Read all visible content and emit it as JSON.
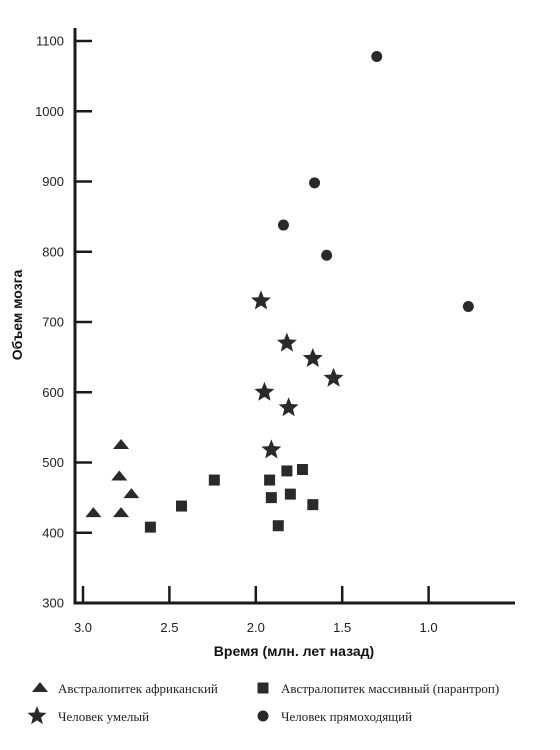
{
  "chart_data": {
    "type": "scatter",
    "xlabel": "Время (млн. лет назад)",
    "ylabel": "Объем мозга",
    "xlim": [
      3.0,
      0.5
    ],
    "ylim": [
      300,
      1100
    ],
    "x_reversed": true,
    "x_ticks": [
      3.0,
      2.5,
      2.0,
      1.5,
      1.0
    ],
    "x_tick_labels": [
      "3.0",
      "2.5",
      "2.0",
      "1.5",
      "1.0"
    ],
    "y_ticks": [
      300,
      400,
      500,
      600,
      700,
      800,
      900,
      1000,
      1100
    ],
    "y_tick_labels": [
      "300",
      "400",
      "500",
      "600",
      "700",
      "800",
      "900",
      "1000",
      "1100"
    ],
    "grid": false,
    "legend_position": "bottom",
    "series": [
      {
        "name": "Австралопитек африканский",
        "marker": "triangle",
        "points": [
          [
            2.78,
            525
          ],
          [
            2.79,
            480
          ],
          [
            2.72,
            455
          ],
          [
            2.94,
            428
          ],
          [
            2.78,
            428
          ]
        ]
      },
      {
        "name": "Австралопитек массивный (парантроп)",
        "marker": "square",
        "points": [
          [
            2.61,
            408
          ],
          [
            2.43,
            438
          ],
          [
            2.24,
            475
          ],
          [
            1.92,
            475
          ],
          [
            1.91,
            450
          ],
          [
            1.87,
            410
          ],
          [
            1.82,
            488
          ],
          [
            1.8,
            455
          ],
          [
            1.73,
            490
          ],
          [
            1.67,
            440
          ]
        ]
      },
      {
        "name": "Человек умелый",
        "marker": "star",
        "points": [
          [
            1.97,
            730
          ],
          [
            1.82,
            670
          ],
          [
            1.67,
            648
          ],
          [
            1.55,
            620
          ],
          [
            1.95,
            600
          ],
          [
            1.81,
            578
          ],
          [
            1.91,
            518
          ]
        ]
      },
      {
        "name": "Человек прямоходящий",
        "marker": "circle",
        "points": [
          [
            1.3,
            1078
          ],
          [
            1.66,
            898
          ],
          [
            1.84,
            838
          ],
          [
            1.59,
            795
          ],
          [
            0.77,
            722
          ]
        ]
      }
    ]
  }
}
